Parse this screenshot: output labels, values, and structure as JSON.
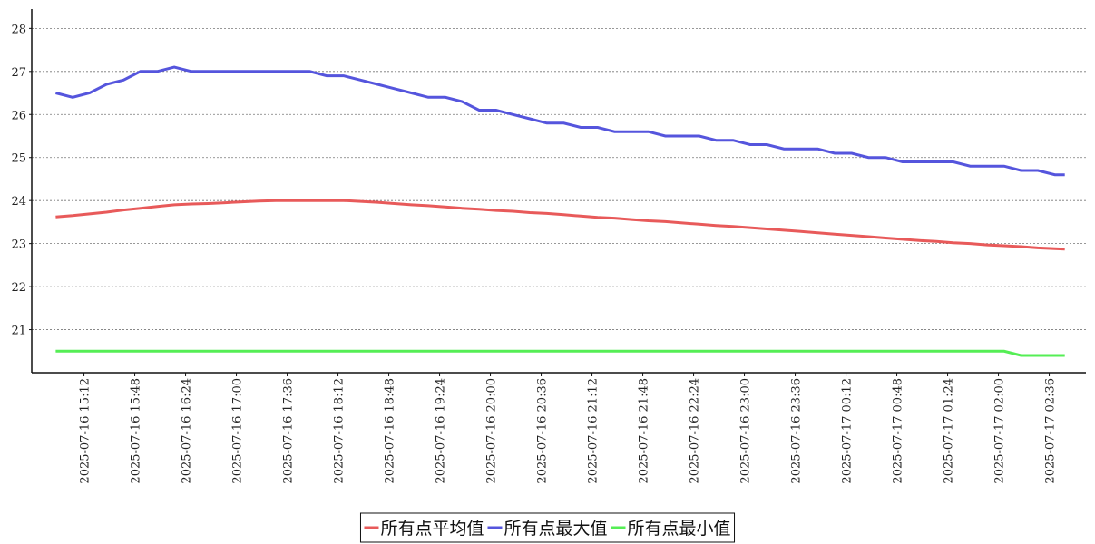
{
  "chart_data": {
    "type": "line",
    "x": [
      "2025-07-16 14:52",
      "2025-07-16 15:04",
      "2025-07-16 15:16",
      "2025-07-16 15:28",
      "2025-07-16 15:40",
      "2025-07-16 15:52",
      "2025-07-16 16:04",
      "2025-07-16 16:16",
      "2025-07-16 16:28",
      "2025-07-16 16:40",
      "2025-07-16 16:52",
      "2025-07-16 17:04",
      "2025-07-16 17:16",
      "2025-07-16 17:28",
      "2025-07-16 17:40",
      "2025-07-16 17:52",
      "2025-07-16 18:04",
      "2025-07-16 18:16",
      "2025-07-16 18:28",
      "2025-07-16 18:40",
      "2025-07-16 18:52",
      "2025-07-16 19:04",
      "2025-07-16 19:16",
      "2025-07-16 19:28",
      "2025-07-16 19:40",
      "2025-07-16 19:52",
      "2025-07-16 20:04",
      "2025-07-16 20:16",
      "2025-07-16 20:28",
      "2025-07-16 20:40",
      "2025-07-16 20:52",
      "2025-07-16 21:04",
      "2025-07-16 21:16",
      "2025-07-16 21:28",
      "2025-07-16 21:40",
      "2025-07-16 21:52",
      "2025-07-16 22:04",
      "2025-07-16 22:16",
      "2025-07-16 22:28",
      "2025-07-16 22:40",
      "2025-07-16 22:52",
      "2025-07-16 23:04",
      "2025-07-16 23:16",
      "2025-07-16 23:28",
      "2025-07-16 23:40",
      "2025-07-16 23:52",
      "2025-07-17 00:04",
      "2025-07-17 00:16",
      "2025-07-17 00:28",
      "2025-07-17 00:40",
      "2025-07-17 00:52",
      "2025-07-17 01:04",
      "2025-07-17 01:16",
      "2025-07-17 01:28",
      "2025-07-17 01:40",
      "2025-07-17 01:52",
      "2025-07-17 02:04",
      "2025-07-17 02:16",
      "2025-07-17 02:28",
      "2025-07-17 02:40",
      "2025-07-17 02:47"
    ],
    "series": [
      {
        "name": "所有点平均值",
        "color": "#e85a5a",
        "values": [
          23.62,
          23.65,
          23.69,
          23.73,
          23.78,
          23.82,
          23.86,
          23.9,
          23.92,
          23.93,
          23.95,
          23.97,
          23.99,
          24.0,
          24.0,
          24.0,
          24.0,
          24.0,
          23.98,
          23.96,
          23.93,
          23.9,
          23.88,
          23.85,
          23.82,
          23.8,
          23.77,
          23.75,
          23.72,
          23.7,
          23.67,
          23.64,
          23.61,
          23.59,
          23.56,
          23.53,
          23.51,
          23.48,
          23.45,
          23.42,
          23.4,
          23.37,
          23.34,
          23.31,
          23.28,
          23.25,
          23.22,
          23.19,
          23.16,
          23.13,
          23.1,
          23.07,
          23.05,
          23.02,
          23.0,
          22.97,
          22.95,
          22.93,
          22.9,
          22.88,
          22.87
        ]
      },
      {
        "name": "所有点最大值",
        "color": "#5555dd",
        "values": [
          26.5,
          26.4,
          26.5,
          26.7,
          26.8,
          27.0,
          27.0,
          27.1,
          27.0,
          27.0,
          27.0,
          27.0,
          27.0,
          27.0,
          27.0,
          27.0,
          26.9,
          26.9,
          26.8,
          26.7,
          26.6,
          26.5,
          26.4,
          26.4,
          26.3,
          26.1,
          26.1,
          26.0,
          25.9,
          25.8,
          25.8,
          25.7,
          25.7,
          25.6,
          25.6,
          25.6,
          25.5,
          25.5,
          25.5,
          25.4,
          25.4,
          25.3,
          25.3,
          25.2,
          25.2,
          25.2,
          25.1,
          25.1,
          25.0,
          25.0,
          24.9,
          24.9,
          24.9,
          24.9,
          24.8,
          24.8,
          24.8,
          24.7,
          24.7,
          24.6,
          24.6
        ]
      },
      {
        "name": "所有点最小值",
        "color": "#55ee55",
        "values": [
          20.5,
          20.5,
          20.5,
          20.5,
          20.5,
          20.5,
          20.5,
          20.5,
          20.5,
          20.5,
          20.5,
          20.5,
          20.5,
          20.5,
          20.5,
          20.5,
          20.5,
          20.5,
          20.5,
          20.5,
          20.5,
          20.5,
          20.5,
          20.5,
          20.5,
          20.5,
          20.5,
          20.5,
          20.5,
          20.5,
          20.5,
          20.5,
          20.5,
          20.5,
          20.5,
          20.5,
          20.5,
          20.5,
          20.5,
          20.5,
          20.5,
          20.5,
          20.5,
          20.5,
          20.5,
          20.5,
          20.5,
          20.5,
          20.5,
          20.5,
          20.5,
          20.5,
          20.5,
          20.5,
          20.5,
          20.5,
          20.5,
          20.4,
          20.4,
          20.4,
          20.4
        ]
      }
    ],
    "xlim": [
      "2025-07-16 14:35",
      "2025-07-17 03:02"
    ],
    "xticks": [
      "2025-07-16 15:12",
      "2025-07-16 15:48",
      "2025-07-16 16:24",
      "2025-07-16 17:00",
      "2025-07-16 17:36",
      "2025-07-16 18:12",
      "2025-07-16 18:48",
      "2025-07-16 19:24",
      "2025-07-16 20:00",
      "2025-07-16 20:36",
      "2025-07-16 21:12",
      "2025-07-16 21:48",
      "2025-07-16 22:24",
      "2025-07-16 23:00",
      "2025-07-16 23:36",
      "2025-07-17 00:12",
      "2025-07-17 00:48",
      "2025-07-17 01:24",
      "2025-07-17 02:00",
      "2025-07-17 02:36"
    ],
    "ylim": [
      20,
      28.45
    ],
    "yticks": [
      21,
      22,
      23,
      24,
      25,
      26,
      27,
      28
    ],
    "grid": true,
    "legend": "bottom"
  }
}
